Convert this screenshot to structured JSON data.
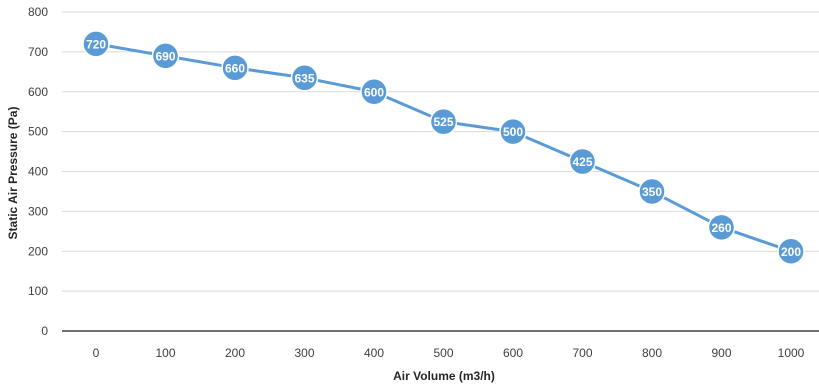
{
  "chart_data": {
    "type": "line",
    "xlabel": "Air Volume (m3/h)",
    "ylabel": "Static Air Pressure (Pa)",
    "ylim": [
      0,
      800
    ],
    "yticks": [
      0,
      100,
      200,
      300,
      400,
      500,
      600,
      700,
      800
    ],
    "categories": [
      "0",
      "100",
      "200",
      "300",
      "400",
      "500",
      "600",
      "700",
      "800",
      "900",
      "1000"
    ],
    "series": [
      {
        "values": [
          720,
          690,
          660,
          635,
          600,
          525,
          500,
          425,
          350,
          260,
          200
        ],
        "color": "#5b9bd5"
      }
    ],
    "data_labels": true,
    "grid": true
  }
}
